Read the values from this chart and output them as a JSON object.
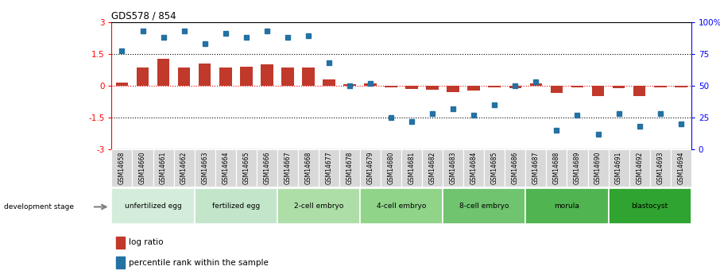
{
  "title": "GDS578 / 854",
  "samples": [
    "GSM14658",
    "GSM14660",
    "GSM14661",
    "GSM14662",
    "GSM14663",
    "GSM14664",
    "GSM14665",
    "GSM14666",
    "GSM14667",
    "GSM14668",
    "GSM14677",
    "GSM14678",
    "GSM14679",
    "GSM14680",
    "GSM14681",
    "GSM14682",
    "GSM14683",
    "GSM14684",
    "GSM14685",
    "GSM14686",
    "GSM14687",
    "GSM14688",
    "GSM14689",
    "GSM14690",
    "GSM14691",
    "GSM14692",
    "GSM14693",
    "GSM14694"
  ],
  "log_ratio": [
    0.15,
    0.85,
    1.25,
    0.85,
    1.05,
    0.85,
    0.9,
    1.0,
    0.85,
    0.85,
    0.3,
    0.05,
    0.1,
    -0.1,
    -0.15,
    -0.2,
    -0.3,
    -0.25,
    -0.08,
    -0.12,
    0.12,
    -0.35,
    -0.08,
    -0.5,
    -0.12,
    -0.5,
    -0.08,
    -0.08
  ],
  "percentile": [
    77,
    93,
    88,
    93,
    83,
    91,
    88,
    93,
    88,
    89,
    68,
    50,
    52,
    25,
    22,
    28,
    32,
    27,
    35,
    50,
    53,
    15,
    27,
    12,
    28,
    18,
    28,
    20
  ],
  "stages": [
    {
      "label": "unfertilized egg",
      "start": 0,
      "end": 4,
      "color": "#d4edda"
    },
    {
      "label": "fertilized egg",
      "start": 4,
      "end": 8,
      "color": "#c3e6cb"
    },
    {
      "label": "2-cell embryo",
      "start": 8,
      "end": 12,
      "color": "#aedea8"
    },
    {
      "label": "4-cell embryo",
      "start": 12,
      "end": 16,
      "color": "#90d48a"
    },
    {
      "label": "8-cell embryo",
      "start": 16,
      "end": 20,
      "color": "#70c470"
    },
    {
      "label": "morula",
      "start": 20,
      "end": 24,
      "color": "#50b450"
    },
    {
      "label": "blastocyst",
      "start": 24,
      "end": 28,
      "color": "#30a430"
    }
  ],
  "bar_color": "#c0392b",
  "dot_color": "#2471a3",
  "ylim": [
    -3,
    3
  ],
  "y2lim": [
    0,
    100
  ],
  "bg_color": "#f0f0f0",
  "plot_bg": "#ffffff"
}
